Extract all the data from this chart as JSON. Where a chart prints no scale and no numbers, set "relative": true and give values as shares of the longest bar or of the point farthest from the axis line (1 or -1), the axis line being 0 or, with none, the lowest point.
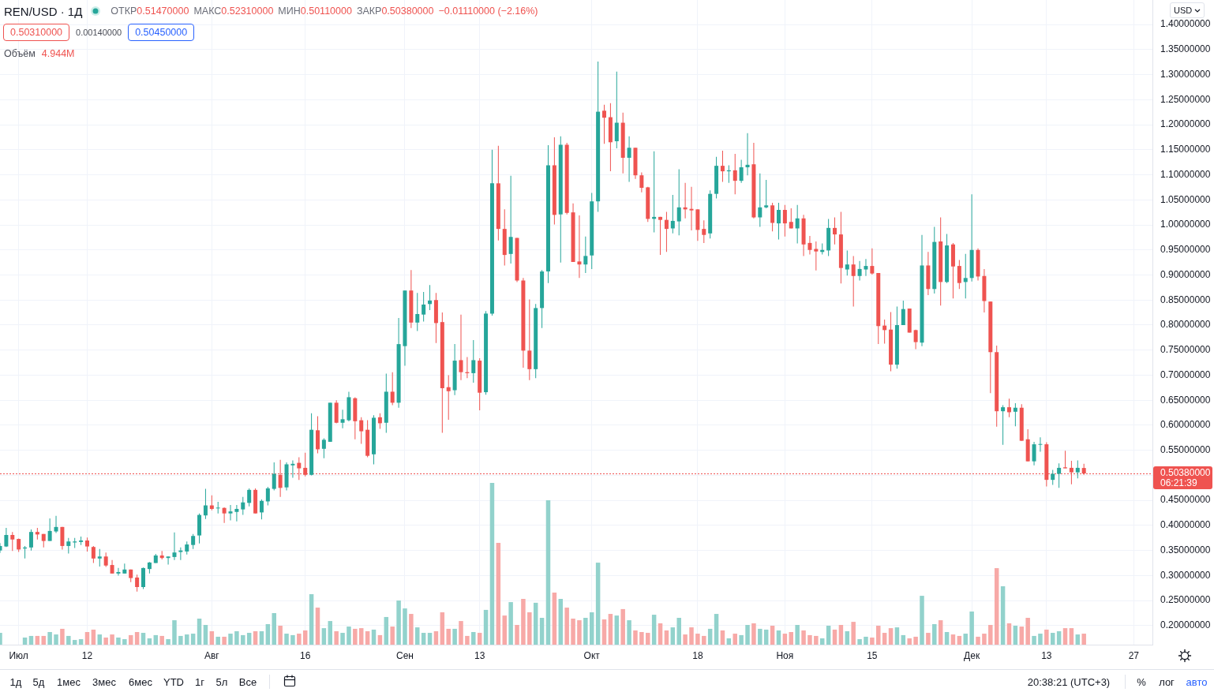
{
  "chart_data": [
    {
      "type": "candlestick",
      "title": "REN/USD · 1Д",
      "x": [
        "--06-28",
        "--06-29",
        "--06-30",
        "--07-01",
        "--07-02",
        "--07-03",
        "--07-04",
        "--07-05",
        "--07-06",
        "--07-07",
        "--07-08",
        "--07-09",
        "--07-10",
        "--07-11",
        "--07-12",
        "--07-13",
        "--07-14",
        "--07-15",
        "--07-16",
        "--07-17",
        "--07-18",
        "--07-19",
        "--07-20",
        "--07-21",
        "--07-22",
        "--07-23",
        "--07-24",
        "--07-25",
        "--07-26",
        "--07-27",
        "--07-28",
        "--07-29",
        "--07-30",
        "--07-31",
        "--08-01",
        "--08-02",
        "--08-03",
        "--08-04",
        "--08-05",
        "--08-06",
        "--08-07",
        "--08-08",
        "--08-09",
        "--08-10",
        "--08-11",
        "--08-12",
        "--08-13",
        "--08-14",
        "--08-15",
        "--08-16",
        "--08-17",
        "--08-18",
        "--08-19",
        "--08-20",
        "--08-21",
        "--08-22",
        "--08-23",
        "--08-24",
        "--08-25",
        "--08-26",
        "--08-27",
        "--08-28",
        "--08-29",
        "--08-30",
        "--08-31",
        "--09-01",
        "--09-02",
        "--09-03",
        "--09-04",
        "--09-05",
        "--09-06",
        "--09-07",
        "--09-08",
        "--09-09",
        "--09-10",
        "--09-11",
        "--09-12",
        "--09-13",
        "--09-14",
        "--09-15",
        "--09-16",
        "--09-17",
        "--09-18",
        "--09-19",
        "--09-20",
        "--09-21",
        "--09-22",
        "--09-23",
        "--09-24",
        "--09-25",
        "--09-26",
        "--09-27",
        "--09-28",
        "--09-29",
        "--09-30",
        "--10-01",
        "--10-02",
        "--10-03",
        "--10-04",
        "--10-05",
        "--10-06",
        "--10-07",
        "--10-08",
        "--10-09",
        "--10-10",
        "--10-11",
        "--10-12",
        "--10-13",
        "--10-14",
        "--10-15",
        "--10-16",
        "--10-17",
        "--10-18",
        "--10-19",
        "--10-20",
        "--10-21",
        "--10-22",
        "--10-23",
        "--10-24",
        "--10-25",
        "--10-26",
        "--10-27",
        "--10-28",
        "--10-29",
        "--10-30",
        "--10-31",
        "--11-01",
        "--11-02",
        "--11-03",
        "--11-04",
        "--11-05",
        "--11-06",
        "--11-07",
        "--11-08",
        "--11-09",
        "--11-10",
        "--11-11",
        "--11-12",
        "--11-13",
        "--11-14",
        "--11-15",
        "--11-16",
        "--11-17",
        "--11-18",
        "--11-19",
        "--11-20",
        "--11-21",
        "--11-22",
        "--11-23",
        "--11-24",
        "--11-25",
        "--11-26",
        "--11-27",
        "--11-28",
        "--11-29",
        "--11-30",
        "--12-01",
        "--12-02",
        "--12-03",
        "--12-04",
        "--12-05",
        "--12-06",
        "--12-07",
        "--12-08",
        "--12-09",
        "--12-10",
        "--12-11",
        "--12-12",
        "--12-13",
        "--12-14",
        "--12-15",
        "--12-16",
        "--12-17",
        "--12-18",
        "--12-19"
      ],
      "ohlc": [
        [
          0.35,
          0.365,
          0.345,
          0.359
        ],
        [
          0.358,
          0.395,
          0.357,
          0.381
        ],
        [
          0.381,
          0.387,
          0.349,
          0.372
        ],
        [
          0.373,
          0.374,
          0.347,
          0.352
        ],
        [
          0.354,
          0.359,
          0.334,
          0.356
        ],
        [
          0.356,
          0.392,
          0.35,
          0.387
        ],
        [
          0.387,
          0.395,
          0.372,
          0.382
        ],
        [
          0.383,
          0.383,
          0.356,
          0.369
        ],
        [
          0.369,
          0.414,
          0.369,
          0.389
        ],
        [
          0.388,
          0.419,
          0.385,
          0.397
        ],
        [
          0.397,
          0.397,
          0.352,
          0.359
        ],
        [
          0.359,
          0.375,
          0.344,
          0.368
        ],
        [
          0.366,
          0.375,
          0.355,
          0.368
        ],
        [
          0.367,
          0.378,
          0.361,
          0.37
        ],
        [
          0.37,
          0.376,
          0.348,
          0.358
        ],
        [
          0.357,
          0.359,
          0.325,
          0.334
        ],
        [
          0.334,
          0.353,
          0.318,
          0.338
        ],
        [
          0.338,
          0.346,
          0.317,
          0.32
        ],
        [
          0.321,
          0.331,
          0.304,
          0.304
        ],
        [
          0.304,
          0.315,
          0.3,
          0.307
        ],
        [
          0.304,
          0.324,
          0.304,
          0.312
        ],
        [
          0.312,
          0.312,
          0.287,
          0.295
        ],
        [
          0.296,
          0.302,
          0.268,
          0.277
        ],
        [
          0.277,
          0.316,
          0.273,
          0.315
        ],
        [
          0.313,
          0.327,
          0.304,
          0.326
        ],
        [
          0.325,
          0.343,
          0.325,
          0.34
        ],
        [
          0.34,
          0.349,
          0.332,
          0.335
        ],
        [
          0.335,
          0.338,
          0.322,
          0.338
        ],
        [
          0.337,
          0.386,
          0.331,
          0.346
        ],
        [
          0.347,
          0.356,
          0.331,
          0.35
        ],
        [
          0.348,
          0.368,
          0.342,
          0.362
        ],
        [
          0.361,
          0.383,
          0.353,
          0.379
        ],
        [
          0.38,
          0.424,
          0.364,
          0.421
        ],
        [
          0.42,
          0.473,
          0.413,
          0.44
        ],
        [
          0.44,
          0.46,
          0.43,
          0.433
        ],
        [
          0.434,
          0.447,
          0.424,
          0.435
        ],
        [
          0.435,
          0.436,
          0.405,
          0.424
        ],
        [
          0.424,
          0.441,
          0.41,
          0.428
        ],
        [
          0.427,
          0.441,
          0.408,
          0.433
        ],
        [
          0.432,
          0.457,
          0.421,
          0.446
        ],
        [
          0.445,
          0.474,
          0.438,
          0.471
        ],
        [
          0.471,
          0.474,
          0.424,
          0.424
        ],
        [
          0.426,
          0.452,
          0.412,
          0.449
        ],
        [
          0.448,
          0.477,
          0.44,
          0.474
        ],
        [
          0.473,
          0.526,
          0.47,
          0.503
        ],
        [
          0.501,
          0.531,
          0.457,
          0.475
        ],
        [
          0.476,
          0.526,
          0.47,
          0.522
        ],
        [
          0.52,
          0.53,
          0.495,
          0.523
        ],
        [
          0.525,
          0.536,
          0.491,
          0.514
        ],
        [
          0.515,
          0.545,
          0.498,
          0.501
        ],
        [
          0.501,
          0.624,
          0.5,
          0.591
        ],
        [
          0.59,
          0.618,
          0.544,
          0.552
        ],
        [
          0.553,
          0.574,
          0.534,
          0.571
        ],
        [
          0.567,
          0.645,
          0.567,
          0.645
        ],
        [
          0.645,
          0.65,
          0.604,
          0.605
        ],
        [
          0.605,
          0.631,
          0.594,
          0.612
        ],
        [
          0.61,
          0.667,
          0.608,
          0.656
        ],
        [
          0.654,
          0.656,
          0.572,
          0.608
        ],
        [
          0.61,
          0.616,
          0.563,
          0.588
        ],
        [
          0.591,
          0.61,
          0.536,
          0.539
        ],
        [
          0.542,
          0.62,
          0.522,
          0.615
        ],
        [
          0.616,
          0.624,
          0.593,
          0.604
        ],
        [
          0.605,
          0.703,
          0.585,
          0.667
        ],
        [
          0.667,
          0.706,
          0.64,
          0.645
        ],
        [
          0.645,
          0.814,
          0.635,
          0.762
        ],
        [
          0.758,
          0.869,
          0.719,
          0.869
        ],
        [
          0.869,
          0.91,
          0.794,
          0.805
        ],
        [
          0.805,
          0.864,
          0.788,
          0.822
        ],
        [
          0.821,
          0.866,
          0.807,
          0.841
        ],
        [
          0.842,
          0.88,
          0.83,
          0.849
        ],
        [
          0.85,
          0.864,
          0.764,
          0.804
        ],
        [
          0.806,
          0.825,
          0.585,
          0.674
        ],
        [
          0.676,
          0.7,
          0.611,
          0.668
        ],
        [
          0.67,
          0.762,
          0.66,
          0.729
        ],
        [
          0.73,
          0.821,
          0.69,
          0.706
        ],
        [
          0.706,
          0.736,
          0.694,
          0.704
        ],
        [
          0.704,
          0.77,
          0.685,
          0.73
        ],
        [
          0.729,
          0.734,
          0.63,
          0.665
        ],
        [
          0.666,
          0.828,
          0.661,
          0.823
        ],
        [
          0.823,
          1.15,
          0.819,
          1.083
        ],
        [
          1.083,
          1.158,
          0.969,
          0.992
        ],
        [
          0.992,
          1.031,
          0.919,
          0.94
        ],
        [
          0.942,
          1.098,
          0.923,
          0.976
        ],
        [
          0.974,
          0.974,
          0.886,
          0.889
        ],
        [
          0.889,
          0.894,
          0.715,
          0.749
        ],
        [
          0.749,
          0.851,
          0.69,
          0.712
        ],
        [
          0.712,
          0.842,
          0.694,
          0.834
        ],
        [
          0.834,
          0.91,
          0.794,
          0.907
        ],
        [
          0.907,
          1.159,
          0.884,
          1.119
        ],
        [
          1.119,
          1.175,
          1.001,
          1.02
        ],
        [
          1.021,
          1.177,
          0.925,
          1.16
        ],
        [
          1.16,
          1.164,
          1.021,
          1.024
        ],
        [
          1.025,
          1.043,
          0.926,
          0.926
        ],
        [
          0.927,
          1.019,
          0.894,
          0.921
        ],
        [
          0.921,
          0.977,
          0.904,
          0.938
        ],
        [
          0.939,
          1.064,
          0.912,
          1.047
        ],
        [
          1.047,
          1.326,
          1.026,
          1.226
        ],
        [
          1.228,
          1.24,
          1.162,
          1.214
        ],
        [
          1.215,
          1.243,
          1.107,
          1.165
        ],
        [
          1.167,
          1.306,
          1.153,
          1.204
        ],
        [
          1.204,
          1.224,
          1.103,
          1.134
        ],
        [
          1.134,
          1.177,
          1.086,
          1.154
        ],
        [
          1.154,
          1.154,
          1.092,
          1.099
        ],
        [
          1.099,
          1.105,
          1.065,
          1.074
        ],
        [
          1.075,
          1.076,
          1.006,
          1.012
        ],
        [
          1.012,
          1.147,
          0.985,
          1.016
        ],
        [
          1.016,
          1.016,
          0.94,
          1.01
        ],
        [
          1.01,
          1.026,
          0.946,
          0.992
        ],
        [
          0.993,
          1.06,
          0.983,
          1.008
        ],
        [
          1.007,
          1.111,
          0.979,
          1.035
        ],
        [
          1.035,
          1.084,
          1.013,
          1.031
        ],
        [
          1.032,
          1.076,
          0.989,
          1.029
        ],
        [
          1.031,
          1.031,
          0.968,
          0.99
        ],
        [
          0.992,
          1.009,
          0.964,
          0.98
        ],
        [
          0.983,
          1.069,
          0.973,
          1.062
        ],
        [
          1.062,
          1.136,
          1.053,
          1.118
        ],
        [
          1.118,
          1.148,
          1.086,
          1.107
        ],
        [
          1.107,
          1.119,
          1.084,
          1.109
        ],
        [
          1.109,
          1.142,
          1.061,
          1.088
        ],
        [
          1.088,
          1.13,
          1.084,
          1.115
        ],
        [
          1.115,
          1.183,
          1.099,
          1.12
        ],
        [
          1.121,
          1.164,
          1.013,
          1.015
        ],
        [
          1.015,
          1.103,
          0.996,
          1.035
        ],
        [
          1.035,
          1.09,
          1.033,
          1.039
        ],
        [
          1.039,
          1.044,
          0.987,
          1.004
        ],
        [
          1.003,
          1.044,
          0.971,
          1.03
        ],
        [
          1.03,
          1.04,
          0.977,
          1.003
        ],
        [
          1.006,
          1.033,
          0.993,
          0.993
        ],
        [
          0.993,
          1.04,
          0.963,
          1.013
        ],
        [
          1.013,
          1.02,
          0.938,
          0.961
        ],
        [
          0.964,
          0.978,
          0.941,
          0.95
        ],
        [
          0.952,
          0.967,
          0.909,
          0.947
        ],
        [
          0.946,
          0.963,
          0.941,
          0.95
        ],
        [
          0.949,
          1.012,
          0.938,
          0.994
        ],
        [
          0.994,
          1.015,
          0.961,
          0.981
        ],
        [
          0.981,
          1.026,
          0.883,
          0.914
        ],
        [
          0.911,
          0.949,
          0.899,
          0.921
        ],
        [
          0.921,
          0.938,
          0.837,
          0.898
        ],
        [
          0.898,
          0.928,
          0.889,
          0.912
        ],
        [
          0.911,
          0.932,
          0.898,
          0.918
        ],
        [
          0.918,
          0.953,
          0.901,
          0.903
        ],
        [
          0.904,
          0.904,
          0.762,
          0.798
        ],
        [
          0.799,
          0.811,
          0.763,
          0.79
        ],
        [
          0.791,
          0.826,
          0.708,
          0.721
        ],
        [
          0.721,
          0.837,
          0.713,
          0.8
        ],
        [
          0.8,
          0.849,
          0.8,
          0.832
        ],
        [
          0.833,
          0.833,
          0.785,
          0.785
        ],
        [
          0.79,
          0.791,
          0.752,
          0.766
        ],
        [
          0.765,
          0.98,
          0.758,
          0.919
        ],
        [
          0.919,
          0.946,
          0.86,
          0.872
        ],
        [
          0.872,
          0.996,
          0.863,
          0.966
        ],
        [
          0.967,
          1.015,
          0.839,
          0.886
        ],
        [
          0.886,
          0.982,
          0.884,
          0.959
        ],
        [
          0.961,
          0.964,
          0.853,
          0.917
        ],
        [
          0.918,
          0.93,
          0.872,
          0.884
        ],
        [
          0.886,
          0.942,
          0.853,
          0.894
        ],
        [
          0.894,
          1.061,
          0.887,
          0.95
        ],
        [
          0.95,
          0.953,
          0.889,
          0.897
        ],
        [
          0.898,
          0.912,
          0.825,
          0.848
        ],
        [
          0.847,
          0.847,
          0.664,
          0.746
        ],
        [
          0.746,
          0.759,
          0.597,
          0.628
        ],
        [
          0.628,
          0.64,
          0.561,
          0.636
        ],
        [
          0.636,
          0.653,
          0.616,
          0.626
        ],
        [
          0.627,
          0.644,
          0.598,
          0.635
        ],
        [
          0.635,
          0.642,
          0.569,
          0.569
        ],
        [
          0.572,
          0.592,
          0.528,
          0.528
        ],
        [
          0.528,
          0.567,
          0.52,
          0.562
        ],
        [
          0.561,
          0.576,
          0.547,
          0.562
        ],
        [
          0.562,
          0.566,
          0.478,
          0.491
        ],
        [
          0.491,
          0.511,
          0.481,
          0.503
        ],
        [
          0.503,
          0.524,
          0.475,
          0.515
        ],
        [
          0.516,
          0.549,
          0.514,
          0.514
        ],
        [
          0.515,
          0.529,
          0.482,
          0.506
        ],
        [
          0.506,
          0.53,
          0.494,
          0.515
        ],
        [
          0.5147,
          0.5231,
          0.5011,
          0.5038
        ]
      ],
      "colors": [
        "#26a69a",
        "#26a69a",
        "#ef5350",
        "#ef5350",
        "#26a69a",
        "#26a69a",
        "#ef5350",
        "#ef5350",
        "#26a69a",
        "#26a69a",
        "#ef5350",
        "#26a69a",
        "#26a69a",
        "#26a69a",
        "#ef5350",
        "#ef5350",
        "#26a69a",
        "#ef5350",
        "#ef5350",
        "#26a69a",
        "#26a69a",
        "#ef5350",
        "#ef5350",
        "#26a69a",
        "#26a69a",
        "#26a69a",
        "#ef5350",
        "#26a69a",
        "#26a69a",
        "#26a69a",
        "#26a69a",
        "#26a69a",
        "#26a69a",
        "#26a69a",
        "#ef5350",
        "#26a69a",
        "#ef5350",
        "#26a69a",
        "#26a69a",
        "#26a69a",
        "#26a69a",
        "#ef5350",
        "#26a69a",
        "#26a69a",
        "#26a69a",
        "#ef5350",
        "#26a69a",
        "#26a69a",
        "#ef5350",
        "#ef5350",
        "#26a69a",
        "#ef5350",
        "#26a69a",
        "#26a69a",
        "#ef5350",
        "#26a69a",
        "#26a69a",
        "#ef5350",
        "#ef5350",
        "#ef5350",
        "#26a69a",
        "#ef5350",
        "#26a69a",
        "#ef5350",
        "#26a69a",
        "#26a69a",
        "#ef5350",
        "#26a69a",
        "#26a69a",
        "#26a69a",
        "#ef5350",
        "#ef5350",
        "#ef5350",
        "#26a69a",
        "#ef5350",
        "#ef5350",
        "#26a69a",
        "#ef5350",
        "#26a69a",
        "#26a69a",
        "#ef5350",
        "#ef5350",
        "#26a69a",
        "#ef5350",
        "#ef5350",
        "#ef5350",
        "#26a69a",
        "#26a69a",
        "#26a69a",
        "#ef5350",
        "#26a69a",
        "#ef5350",
        "#ef5350",
        "#ef5350",
        "#26a69a",
        "#26a69a",
        "#26a69a",
        "#ef5350",
        "#ef5350",
        "#26a69a",
        "#ef5350",
        "#26a69a",
        "#ef5350",
        "#ef5350",
        "#ef5350",
        "#26a69a",
        "#ef5350",
        "#ef5350",
        "#26a69a",
        "#26a69a",
        "#ef5350",
        "#ef5350",
        "#ef5350",
        "#ef5350",
        "#26a69a",
        "#26a69a",
        "#ef5350",
        "#26a69a",
        "#ef5350",
        "#26a69a",
        "#26a69a",
        "#ef5350",
        "#26a69a",
        "#26a69a",
        "#ef5350",
        "#26a69a",
        "#ef5350",
        "#ef5350",
        "#26a69a",
        "#ef5350",
        "#ef5350",
        "#ef5350",
        "#26a69a",
        "#26a69a",
        "#ef5350",
        "#ef5350",
        "#26a69a",
        "#ef5350",
        "#26a69a",
        "#26a69a",
        "#ef5350",
        "#ef5350",
        "#ef5350",
        "#ef5350",
        "#26a69a",
        "#26a69a",
        "#ef5350",
        "#ef5350",
        "#26a69a",
        "#ef5350",
        "#26a69a",
        "#ef5350",
        "#26a69a",
        "#ef5350",
        "#ef5350",
        "#26a69a",
        "#26a69a",
        "#ef5350",
        "#ef5350",
        "#ef5350",
        "#ef5350",
        "#26a69a",
        "#ef5350",
        "#26a69a",
        "#ef5350",
        "#ef5350",
        "#26a69a",
        "#26a69a",
        "#ef5350",
        "#26a69a",
        "#26a69a",
        "#ef5350",
        "#ef5350",
        "#26a69a",
        "#ef5350"
      ],
      "xlim": [
        "--06-28",
        "--12-30"
      ],
      "xticks": [
        {
          "value": "--07-01",
          "label": "Июл"
        },
        {
          "value": "--07-12",
          "label": "12"
        },
        {
          "value": "--08-01",
          "label": "Авг"
        },
        {
          "value": "--08-16",
          "label": "16"
        },
        {
          "value": "--09-01",
          "label": "Сен"
        },
        {
          "value": "--09-13",
          "label": "13"
        },
        {
          "value": "--10-01",
          "label": "Окт"
        },
        {
          "value": "--10-18",
          "label": "18"
        },
        {
          "value": "--11-01",
          "label": "Ноя"
        },
        {
          "value": "--11-15",
          "label": "15"
        },
        {
          "value": "--12-01",
          "label": "Дек"
        },
        {
          "value": "--12-13",
          "label": "13"
        },
        {
          "value": "--12-27",
          "label": "27"
        }
      ],
      "ylim": [
        0.162,
        1.449
      ],
      "yticks": [
        {
          "value": 0.2,
          "label": "0.20000000"
        },
        {
          "value": 0.25,
          "label": "0.25000000"
        },
        {
          "value": 0.3,
          "label": "0.30000000"
        },
        {
          "value": 0.35,
          "label": "0.35000000"
        },
        {
          "value": 0.4,
          "label": "0.40000000"
        },
        {
          "value": 0.45,
          "label": "0.45000000"
        },
        {
          "value": 0.5,
          "label": null
        },
        {
          "value": 0.55,
          "label": "0.55000000"
        },
        {
          "value": 0.6,
          "label": "0.60000000"
        },
        {
          "value": 0.65,
          "label": "0.65000000"
        },
        {
          "value": 0.7,
          "label": "0.70000000"
        },
        {
          "value": 0.75,
          "label": "0.75000000"
        },
        {
          "value": 0.8,
          "label": "0.80000000"
        },
        {
          "value": 0.85,
          "label": "0.85000000"
        },
        {
          "value": 0.9,
          "label": "0.90000000"
        },
        {
          "value": 0.95,
          "label": "0.95000000"
        },
        {
          "value": 1.0,
          "label": "1.00000000"
        },
        {
          "value": 1.05,
          "label": "1.05000000"
        },
        {
          "value": 1.1,
          "label": "1.10000000"
        },
        {
          "value": 1.15,
          "label": "1.15000000"
        },
        {
          "value": 1.2,
          "label": "1.20000000"
        },
        {
          "value": 1.25,
          "label": "1.25000000"
        },
        {
          "value": 1.3,
          "label": "1.30000000"
        },
        {
          "value": 1.35,
          "label": "1.35000000"
        },
        {
          "value": 1.4,
          "label": "1.40000000"
        }
      ],
      "grid": true,
      "ref_lines": [
        {
          "axis": "y",
          "value": 0.5038,
          "label": "0.50380000",
          "color": "#ef5350",
          "line_style": "dotted"
        }
      ],
      "annotations": [
        "ОТКР",
        "0.51470000",
        "МАКС",
        "0.52310000",
        "МИН",
        "0.50110000",
        "ЗАКР",
        "0.50380000",
        "−0.01110000 (−2.16%)",
        "0.50310000",
        "0.00140000",
        "0.50450000",
        "Объём",
        "4.944M",
        "06:21:39",
        "USD",
        "1д",
        "5д",
        "1мес",
        "3мес",
        "6мес",
        "YTD",
        "1г",
        "5л",
        "Все",
        "20:38:21 (UTC+3)",
        "%",
        "лог",
        "авто"
      ]
    },
    {
      "type": "bar",
      "relative": true,
      "x": [
        "--06-28",
        "--06-29",
        "--06-30",
        "--07-01",
        "--07-02",
        "--07-03",
        "--07-04",
        "--07-05",
        "--07-06",
        "--07-07",
        "--07-08",
        "--07-09",
        "--07-10",
        "--07-11",
        "--07-12",
        "--07-13",
        "--07-14",
        "--07-15",
        "--07-16",
        "--07-17",
        "--07-18",
        "--07-19",
        "--07-20",
        "--07-21",
        "--07-22",
        "--07-23",
        "--07-24",
        "--07-25",
        "--07-26",
        "--07-27",
        "--07-28",
        "--07-29",
        "--07-30",
        "--07-31",
        "--08-01",
        "--08-02",
        "--08-03",
        "--08-04",
        "--08-05",
        "--08-06",
        "--08-07",
        "--08-08",
        "--08-09",
        "--08-10",
        "--08-11",
        "--08-12",
        "--08-13",
        "--08-14",
        "--08-15",
        "--08-16",
        "--08-17",
        "--08-18",
        "--08-19",
        "--08-20",
        "--08-21",
        "--08-22",
        "--08-23",
        "--08-24",
        "--08-25",
        "--08-26",
        "--08-27",
        "--08-28",
        "--08-29",
        "--08-30",
        "--08-31",
        "--09-01",
        "--09-02",
        "--09-03",
        "--09-04",
        "--09-05",
        "--09-06",
        "--09-07",
        "--09-08",
        "--09-09",
        "--09-10",
        "--09-11",
        "--09-12",
        "--09-13",
        "--09-14",
        "--09-15",
        "--09-16",
        "--09-17",
        "--09-18",
        "--09-19",
        "--09-20",
        "--09-21",
        "--09-22",
        "--09-23",
        "--09-24",
        "--09-25",
        "--09-26",
        "--09-27",
        "--09-28",
        "--09-29",
        "--09-30",
        "--10-01",
        "--10-02",
        "--10-03",
        "--10-04",
        "--10-05",
        "--10-06",
        "--10-07",
        "--10-08",
        "--10-09",
        "--10-10",
        "--10-11",
        "--10-12",
        "--10-13",
        "--10-14",
        "--10-15",
        "--10-16",
        "--10-17",
        "--10-18",
        "--10-19",
        "--10-20",
        "--10-21",
        "--10-22",
        "--10-23",
        "--10-24",
        "--10-25",
        "--10-26",
        "--10-27",
        "--10-28",
        "--10-29",
        "--10-30",
        "--10-31",
        "--11-01",
        "--11-02",
        "--11-03",
        "--11-04",
        "--11-05",
        "--11-06",
        "--11-07",
        "--11-08",
        "--11-09",
        "--11-10",
        "--11-11",
        "--11-12",
        "--11-13",
        "--11-14",
        "--11-15",
        "--11-16",
        "--11-17",
        "--11-18",
        "--11-19",
        "--11-20",
        "--11-21",
        "--11-22",
        "--11-23",
        "--11-24",
        "--11-25",
        "--11-26",
        "--11-27",
        "--11-28",
        "--11-29",
        "--11-30",
        "--12-01",
        "--12-02",
        "--12-03",
        "--12-04",
        "--12-05",
        "--12-06",
        "--12-07",
        "--12-08",
        "--12-09",
        "--12-10",
        "--12-11",
        "--12-12",
        "--12-13",
        "--12-14",
        "--12-15",
        "--12-16",
        "--12-17",
        "--12-18",
        "--12-19"
      ],
      "xlim": [
        "--06-28",
        "--12-30"
      ],
      "values": [
        0.073,
        null,
        null,
        null,
        0.044,
        0.054,
        0.054,
        0.054,
        0.078,
        0.063,
        0.098,
        0.054,
        0.029,
        0.034,
        0.078,
        0.093,
        0.063,
        0.044,
        0.063,
        0.044,
        0.034,
        0.059,
        0.078,
        0.073,
        0.039,
        0.059,
        0.054,
        0.034,
        0.151,
        0.054,
        0.063,
        0.068,
        0.161,
        0.122,
        0.083,
        0.049,
        0.049,
        0.068,
        0.083,
        0.059,
        0.073,
        0.083,
        0.083,
        0.127,
        0.195,
        0.117,
        0.068,
        0.059,
        0.068,
        0.088,
        0.312,
        0.229,
        0.102,
        0.146,
        0.083,
        0.073,
        0.112,
        0.098,
        0.102,
        0.083,
        0.093,
        0.059,
        0.171,
        0.112,
        0.273,
        0.224,
        0.19,
        0.107,
        0.073,
        0.073,
        0.083,
        0.2,
        0.098,
        0.098,
        0.146,
        0.054,
        0.078,
        0.073,
        0.215,
        1,
        0.629,
        0.18,
        0.263,
        0.122,
        0.283,
        0.2,
        0.259,
        0.166,
        0.893,
        0.322,
        0.283,
        0.229,
        0.161,
        0.151,
        0.166,
        0.2,
        0.507,
        0.156,
        0.19,
        0.18,
        0.22,
        0.151,
        0.088,
        0.078,
        0.073,
        0.185,
        0.132,
        0.088,
        0.107,
        0.166,
        0.063,
        0.107,
        0.068,
        0.054,
        0.098,
        0.19,
        0.088,
        0.039,
        0.068,
        0.059,
        0.122,
        0.132,
        0.098,
        0.093,
        0.117,
        0.088,
        0.068,
        0.078,
        0.122,
        0.088,
        0.059,
        0.054,
        0.039,
        0.117,
        0.093,
        0.122,
        0.083,
        0.141,
        0.034,
        0.049,
        0.044,
        0.117,
        0.073,
        0.102,
        0.107,
        0.059,
        0.039,
        0.049,
        0.302,
        0.073,
        0.127,
        0.151,
        0.078,
        0.063,
        0.054,
        0.068,
        0.205,
        0.049,
        0.068,
        0.122,
        0.473,
        0.361,
        0.132,
        0.117,
        0.112,
        0.166,
        0.054,
        0.068,
        0.093,
        0.073,
        0.083,
        0.102,
        0.102,
        0.063,
        0.068
      ],
      "colors": [
        "#92d2cc",
        "#92d2cc",
        "#f7a9a7",
        "#f7a9a7",
        "#92d2cc",
        "#92d2cc",
        "#f7a9a7",
        "#f7a9a7",
        "#92d2cc",
        "#92d2cc",
        "#f7a9a7",
        "#92d2cc",
        "#92d2cc",
        "#92d2cc",
        "#f7a9a7",
        "#f7a9a7",
        "#92d2cc",
        "#f7a9a7",
        "#f7a9a7",
        "#92d2cc",
        "#92d2cc",
        "#f7a9a7",
        "#f7a9a7",
        "#92d2cc",
        "#92d2cc",
        "#92d2cc",
        "#f7a9a7",
        "#92d2cc",
        "#92d2cc",
        "#92d2cc",
        "#92d2cc",
        "#92d2cc",
        "#92d2cc",
        "#92d2cc",
        "#f7a9a7",
        "#92d2cc",
        "#f7a9a7",
        "#92d2cc",
        "#92d2cc",
        "#92d2cc",
        "#92d2cc",
        "#f7a9a7",
        "#92d2cc",
        "#92d2cc",
        "#92d2cc",
        "#f7a9a7",
        "#92d2cc",
        "#92d2cc",
        "#f7a9a7",
        "#f7a9a7",
        "#92d2cc",
        "#f7a9a7",
        "#92d2cc",
        "#92d2cc",
        "#f7a9a7",
        "#92d2cc",
        "#92d2cc",
        "#f7a9a7",
        "#f7a9a7",
        "#f7a9a7",
        "#92d2cc",
        "#f7a9a7",
        "#92d2cc",
        "#f7a9a7",
        "#92d2cc",
        "#92d2cc",
        "#f7a9a7",
        "#92d2cc",
        "#92d2cc",
        "#92d2cc",
        "#f7a9a7",
        "#f7a9a7",
        "#f7a9a7",
        "#92d2cc",
        "#f7a9a7",
        "#f7a9a7",
        "#92d2cc",
        "#f7a9a7",
        "#92d2cc",
        "#92d2cc",
        "#f7a9a7",
        "#f7a9a7",
        "#92d2cc",
        "#f7a9a7",
        "#f7a9a7",
        "#f7a9a7",
        "#92d2cc",
        "#92d2cc",
        "#92d2cc",
        "#f7a9a7",
        "#92d2cc",
        "#f7a9a7",
        "#f7a9a7",
        "#f7a9a7",
        "#92d2cc",
        "#92d2cc",
        "#92d2cc",
        "#f7a9a7",
        "#f7a9a7",
        "#92d2cc",
        "#f7a9a7",
        "#92d2cc",
        "#f7a9a7",
        "#f7a9a7",
        "#f7a9a7",
        "#92d2cc",
        "#f7a9a7",
        "#f7a9a7",
        "#92d2cc",
        "#92d2cc",
        "#f7a9a7",
        "#f7a9a7",
        "#f7a9a7",
        "#f7a9a7",
        "#92d2cc",
        "#92d2cc",
        "#f7a9a7",
        "#92d2cc",
        "#f7a9a7",
        "#92d2cc",
        "#92d2cc",
        "#f7a9a7",
        "#92d2cc",
        "#92d2cc",
        "#f7a9a7",
        "#92d2cc",
        "#f7a9a7",
        "#f7a9a7",
        "#92d2cc",
        "#f7a9a7",
        "#f7a9a7",
        "#f7a9a7",
        "#92d2cc",
        "#92d2cc",
        "#f7a9a7",
        "#f7a9a7",
        "#92d2cc",
        "#f7a9a7",
        "#92d2cc",
        "#92d2cc",
        "#f7a9a7",
        "#f7a9a7",
        "#f7a9a7",
        "#f7a9a7",
        "#92d2cc",
        "#92d2cc",
        "#f7a9a7",
        "#f7a9a7",
        "#92d2cc",
        "#f7a9a7",
        "#92d2cc",
        "#f7a9a7",
        "#92d2cc",
        "#f7a9a7",
        "#f7a9a7",
        "#92d2cc",
        "#92d2cc",
        "#f7a9a7",
        "#f7a9a7",
        "#f7a9a7",
        "#f7a9a7",
        "#92d2cc",
        "#f7a9a7",
        "#92d2cc",
        "#f7a9a7",
        "#f7a9a7",
        "#92d2cc",
        "#92d2cc",
        "#f7a9a7",
        "#92d2cc",
        "#92d2cc",
        "#f7a9a7",
        "#f7a9a7",
        "#92d2cc",
        "#f7a9a7"
      ]
    }
  ]
}
